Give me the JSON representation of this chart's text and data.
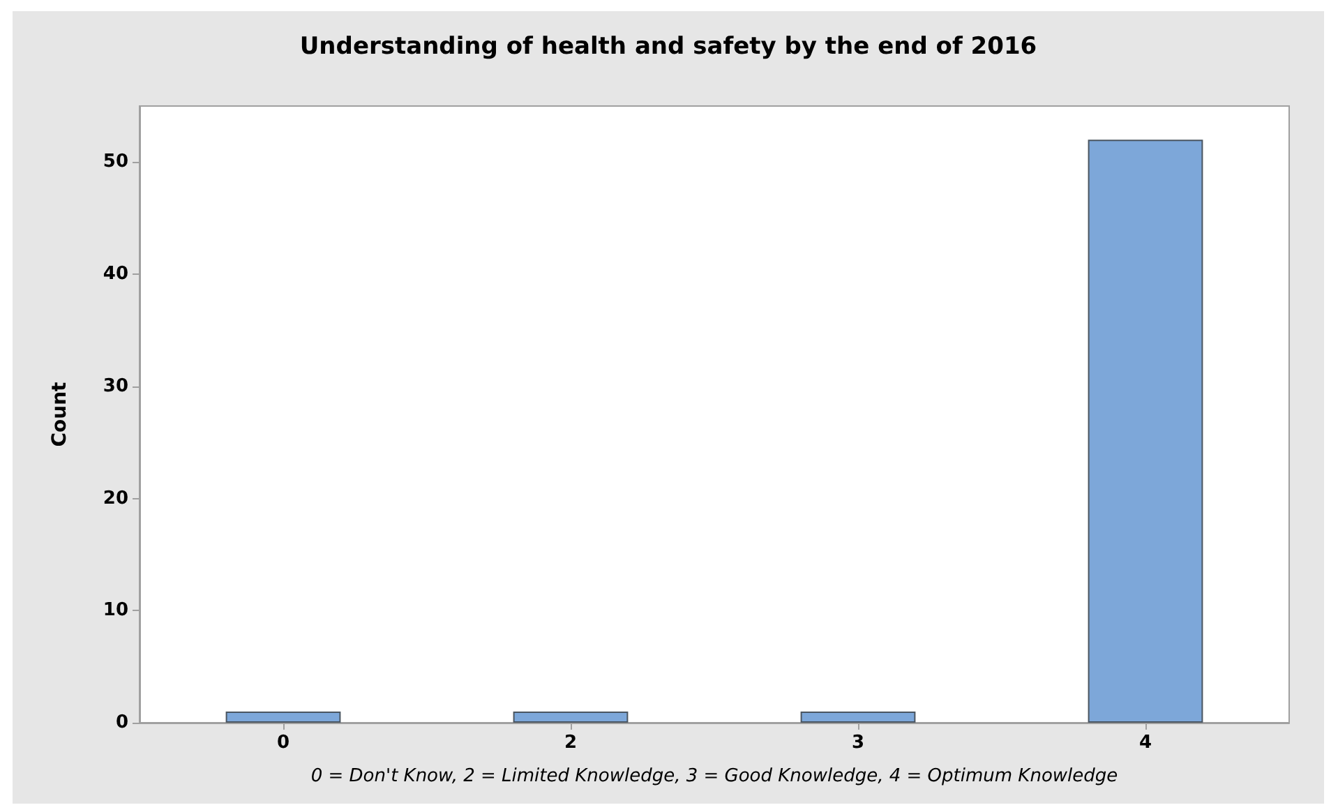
{
  "chart_data": {
    "type": "bar",
    "title": "Understanding of health and safety by the end of 2016",
    "xlabel": "0 = Don't Know, 2 = Limited Knowledge, 3 = Good Knowledge, 4 = Optimum Knowledge",
    "ylabel": "Count",
    "categories": [
      "0",
      "2",
      "3",
      "4"
    ],
    "values": [
      1,
      1,
      1,
      52
    ],
    "color": "#7da7d9",
    "ylim": [
      0,
      55
    ],
    "yticks": [
      0,
      10,
      20,
      30,
      40,
      50
    ],
    "grid": false
  }
}
